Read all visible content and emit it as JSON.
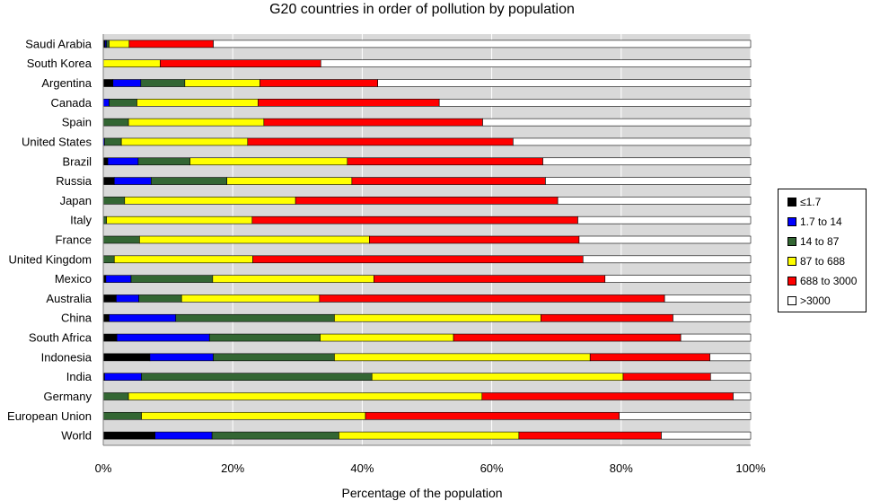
{
  "chart_data": {
    "type": "bar",
    "orientation": "horizontal",
    "stacked": true,
    "title": "G20 countries in order of pollution by population",
    "xlabel": "Percentage of the population",
    "ylabel": "",
    "xlim": [
      0,
      100
    ],
    "x_ticks": [
      "0%",
      "20%",
      "40%",
      "60%",
      "80%",
      "100%"
    ],
    "grid": "vertical",
    "legend_position": "right",
    "categories": [
      "Saudi Arabia",
      "South Korea",
      "Argentina",
      "Canada",
      "Spain",
      "United States",
      "Brazil",
      "Russia",
      "Japan",
      "Italy",
      "France",
      "United Kingdom",
      "Mexico",
      "Australia",
      "China",
      "South Africa",
      "Indonesia",
      "India",
      "Germany",
      "European Union",
      "World"
    ],
    "series": [
      {
        "name": "≤1.7",
        "color": "#000000",
        "values": [
          0.3,
          0,
          1.5,
          0,
          0,
          0,
          0.7,
          1.7,
          0,
          0,
          0,
          0,
          0.4,
          2,
          0.9,
          2.1,
          7.2,
          0.2,
          0,
          0,
          8
        ]
      },
      {
        "name": "1.7 to 14",
        "color": "#0000ff",
        "values": [
          0.2,
          0,
          4.3,
          0.9,
          0,
          0.2,
          4.7,
          5.7,
          0,
          0,
          0,
          0,
          3.9,
          3.5,
          10.3,
          14.3,
          9.8,
          5.7,
          0,
          0,
          8.8
        ]
      },
      {
        "name": "14 to 87",
        "color": "#336633",
        "values": [
          0.4,
          0,
          6.8,
          4.3,
          3.9,
          2.6,
          8,
          11.7,
          3.3,
          0.5,
          5.6,
          1.7,
          12.6,
          6.6,
          24.5,
          17.1,
          18.7,
          35.6,
          3.9,
          5.9,
          19.6
        ]
      },
      {
        "name": "87 to 688",
        "color": "#ffff00",
        "values": [
          3.1,
          8.8,
          11.6,
          18.7,
          20.9,
          19.5,
          24.3,
          19.3,
          26.4,
          22.5,
          35.5,
          21.4,
          24.9,
          21.3,
          31.9,
          20.6,
          39.5,
          38.8,
          54.6,
          34.6,
          27.8
        ]
      },
      {
        "name": "688 to 3000",
        "color": "#ff0000",
        "values": [
          13,
          24.8,
          18.2,
          28,
          33.8,
          41,
          30.2,
          29.9,
          40.5,
          50.3,
          32.4,
          51,
          35.7,
          53.3,
          20.4,
          35.1,
          18.5,
          13.5,
          38.8,
          39.2,
          22
        ]
      },
      {
        "name": ">3000",
        "color": "#ffffff",
        "values": [
          83,
          66.4,
          57.6,
          48.1,
          41.4,
          36.7,
          32.1,
          31.7,
          29.8,
          26.7,
          26.5,
          25.9,
          22.5,
          13.3,
          12,
          10.8,
          6.3,
          6.2,
          2.7,
          20.3,
          13.8
        ]
      }
    ]
  }
}
